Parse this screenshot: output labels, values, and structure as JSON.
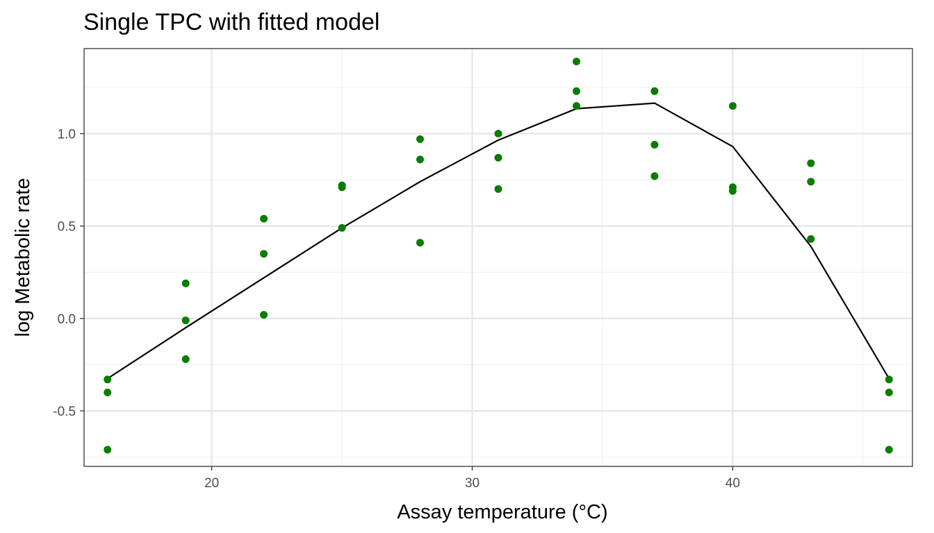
{
  "chart_data": {
    "type": "scatter",
    "title": "Single TPC with fitted model",
    "xlabel": "Assay temperature (°C)",
    "ylabel": "log Metabolic rate",
    "xlim": [
      15.1,
      46.9
    ],
    "ylim": [
      -0.8,
      1.46
    ],
    "x_ticks": [
      20,
      30,
      40
    ],
    "y_ticks": [
      -0.5,
      0.0,
      0.5,
      1.0
    ],
    "x_tick_labels": [
      "20",
      "30",
      "40"
    ],
    "y_tick_labels": [
      "-0.5",
      "0.0",
      "0.5",
      "1.0"
    ],
    "grid": true,
    "legend": "none",
    "colors": {
      "points": "#0a7d00",
      "fit": "#000000"
    },
    "series": [
      {
        "type": "scatter",
        "points": [
          [
            16,
            -0.33
          ],
          [
            16,
            -0.4
          ],
          [
            16,
            -0.71
          ],
          [
            19,
            0.19
          ],
          [
            19,
            -0.01
          ],
          [
            19,
            -0.22
          ],
          [
            22,
            0.54
          ],
          [
            22,
            0.35
          ],
          [
            22,
            0.02
          ],
          [
            25,
            0.72
          ],
          [
            25,
            0.71
          ],
          [
            25,
            0.49
          ],
          [
            28,
            0.97
          ],
          [
            28,
            0.86
          ],
          [
            28,
            0.41
          ],
          [
            31,
            1.0
          ],
          [
            31,
            0.87
          ],
          [
            31,
            0.7
          ],
          [
            34,
            1.39
          ],
          [
            34,
            1.23
          ],
          [
            34,
            1.15
          ],
          [
            37,
            1.23
          ],
          [
            37,
            0.94
          ],
          [
            37,
            0.77
          ],
          [
            40,
            1.15
          ],
          [
            40,
            0.71
          ],
          [
            40,
            0.69
          ],
          [
            43,
            0.84
          ],
          [
            43,
            0.74
          ],
          [
            43,
            0.43
          ],
          [
            46,
            -0.33
          ],
          [
            46,
            -0.4
          ],
          [
            46,
            -0.71
          ]
        ]
      },
      {
        "type": "line",
        "points": [
          [
            16,
            -0.325
          ],
          [
            19,
            -0.05
          ],
          [
            22,
            0.22
          ],
          [
            25,
            0.49
          ],
          [
            28,
            0.74
          ],
          [
            31,
            0.965
          ],
          [
            34,
            1.135
          ],
          [
            37,
            1.165
          ],
          [
            40,
            0.93
          ],
          [
            43,
            0.39
          ],
          [
            46,
            -0.325
          ]
        ]
      }
    ]
  }
}
